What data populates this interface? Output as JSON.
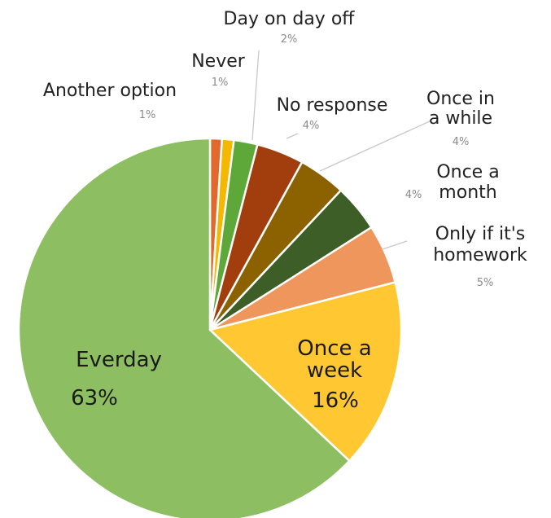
{
  "chart_data": {
    "type": "pie",
    "title": "",
    "start_angle_deg": 0,
    "direction": "clockwise",
    "slices": [
      {
        "name": "Another option",
        "label": "Another option",
        "value": 1,
        "pct_label": "1%",
        "color": "#e2692d"
      },
      {
        "name": "Never",
        "label": "Never",
        "value": 1,
        "pct_label": "1%",
        "color": "#f5b800"
      },
      {
        "name": "Day on day off",
        "label": "Day on day off",
        "value": 2,
        "pct_label": "2%",
        "color": "#5ea83a"
      },
      {
        "name": "No response",
        "label": "No response",
        "value": 4,
        "pct_label": "4%",
        "color": "#a23d0d"
      },
      {
        "name": "Once in a while",
        "label": "Once in\na while",
        "value": 4,
        "pct_label": "4%",
        "color": "#8c6200"
      },
      {
        "name": "Once a month",
        "label": "Once a\nmonth",
        "value": 4,
        "pct_label": "4%",
        "color": "#3d5e27"
      },
      {
        "name": "Only if it's homework",
        "label": "Only if it's\nhomework",
        "value": 5,
        "pct_label": "5%",
        "color": "#ef965c"
      },
      {
        "name": "Once a week",
        "label": "Once a\nweek",
        "value": 16,
        "pct_label": "16%",
        "color": "#ffc832"
      },
      {
        "name": "Everday",
        "label": "Everday",
        "value": 63,
        "pct_label": "63%",
        "color": "#8dbf62"
      }
    ]
  }
}
